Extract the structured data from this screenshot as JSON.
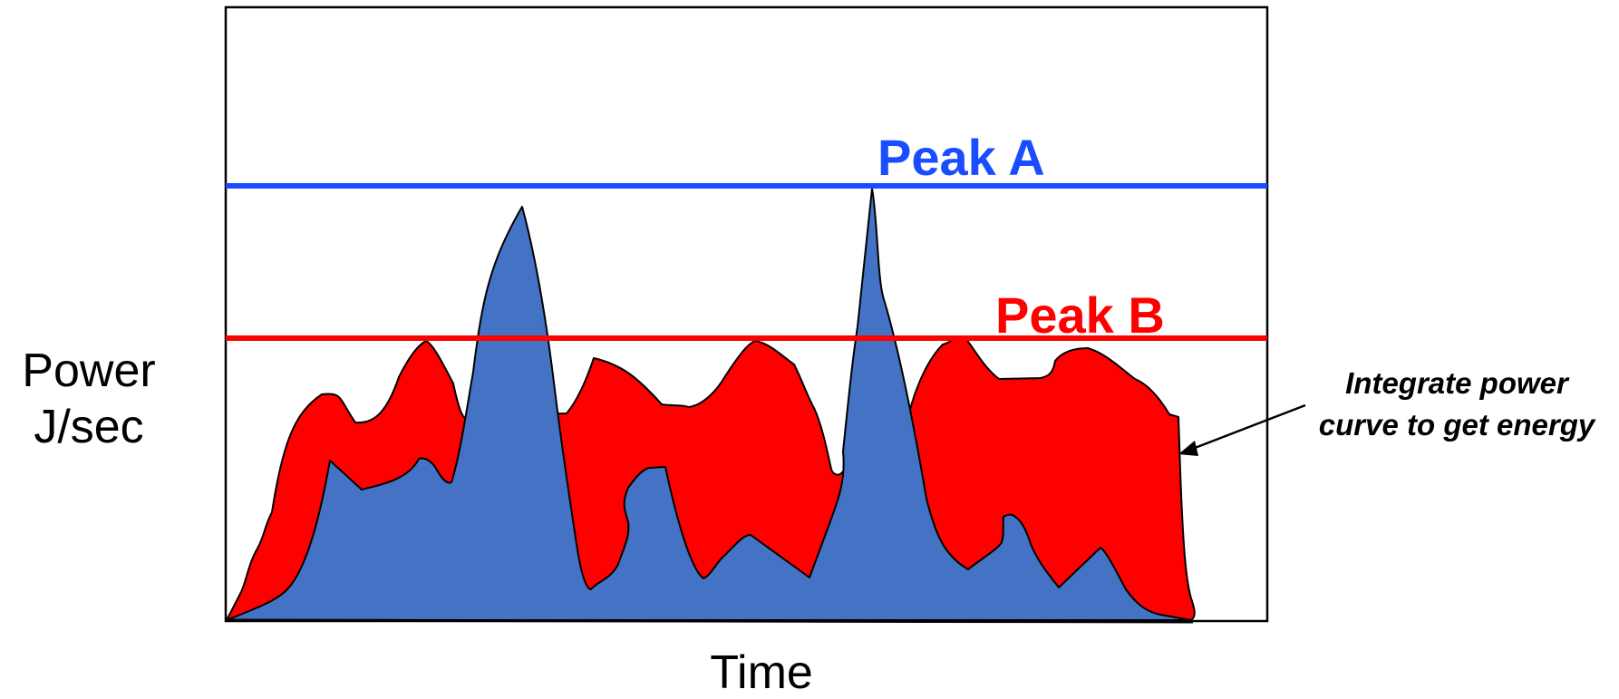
{
  "diagram": {
    "y_axis_label_line1": "Power",
    "y_axis_label_line2": "J/sec",
    "x_axis_label": "Time",
    "peak_a_label": "Peak A",
    "peak_b_label": "Peak B",
    "annotation_line1": "Integrate power",
    "annotation_line2": "curve to get energy",
    "colors": {
      "peak_a_line": "#1a4dff",
      "peak_b_line": "#ff0000",
      "curve_a_fill": "#4472c4",
      "curve_b_fill": "#ff0000",
      "outline": "#000000"
    }
  }
}
